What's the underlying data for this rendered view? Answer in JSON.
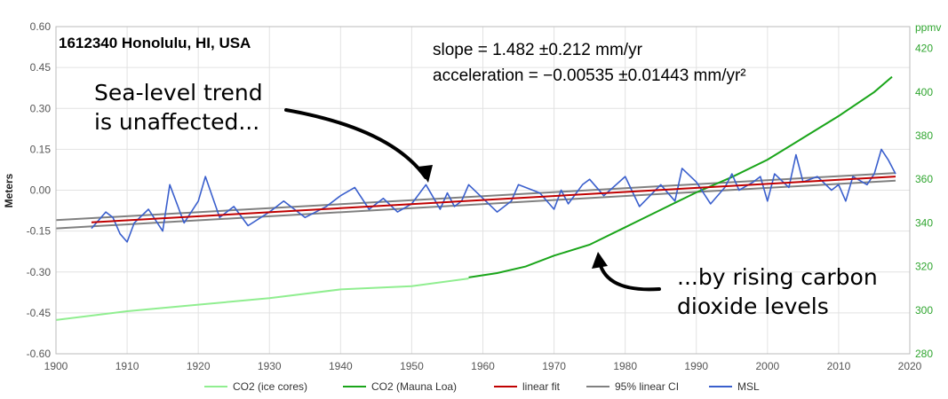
{
  "chart_data": {
    "type": "line",
    "title": "1612340 Honolulu, HI, USA",
    "stats": {
      "slope": "slope = 1.482 ±0.212 mm/yr",
      "acceleration": "acceleration = −0.00535 ±0.01443 mm/yr²"
    },
    "annotations": [
      {
        "lines": [
          "Sea-level trend",
          "is unaffected..."
        ]
      },
      {
        "lines": [
          "...by rising carbon",
          "dioxide levels"
        ]
      }
    ],
    "ylabel": "Meters",
    "y2label": "ppmv",
    "xlim": [
      1900,
      2020
    ],
    "ylim": [
      -0.6,
      0.6
    ],
    "y2lim": [
      280,
      430
    ],
    "x_ticks": [
      "1900",
      "1910",
      "1920",
      "1930",
      "1940",
      "1950",
      "1960",
      "1970",
      "1980",
      "1990",
      "2000",
      "2010",
      "2020"
    ],
    "y_ticks": [
      "0.60",
      "0.45",
      "0.30",
      "0.15",
      "0.00",
      "-0.15",
      "-0.30",
      "-0.45",
      "-0.60"
    ],
    "y2_ticks": [
      "420",
      "400",
      "380",
      "360",
      "340",
      "320",
      "300",
      "280"
    ],
    "grid": true,
    "legend_position": "bottom",
    "colors": {
      "co2_ice": "#90ee90",
      "co2_ml": "#1aa51a",
      "linear_fit": "#c00000",
      "ci": "#808080",
      "msl": "#3a5fcd"
    },
    "series": [
      {
        "name": "CO2 (ice cores)",
        "axis": "right",
        "x": [
          1900,
          1910,
          1920,
          1930,
          1940,
          1950,
          1958
        ],
        "values": [
          295.5,
          299.5,
          302.5,
          305.5,
          309.5,
          311.0,
          314.5
        ]
      },
      {
        "name": "CO2 (Mauna Loa)",
        "axis": "right",
        "x": [
          1958,
          1962,
          1966,
          1970,
          1975,
          1980,
          1985,
          1990,
          1995,
          2000,
          2005,
          2010,
          2015,
          2017.5
        ],
        "values": [
          315,
          317,
          320,
          325,
          330,
          338,
          346,
          354,
          361,
          369,
          379,
          389,
          400,
          407
        ]
      },
      {
        "name": "linear fit",
        "axis": "left",
        "x": [
          1905,
          2018
        ],
        "values": [
          -0.118,
          0.05
        ]
      },
      {
        "name": "95% linear CI",
        "axis": "left",
        "x": [
          1900,
          2018
        ],
        "upper": [
          -0.11,
          0.063
        ],
        "lower": [
          -0.14,
          0.035
        ]
      },
      {
        "name": "MSL",
        "axis": "left",
        "x": [
          1905,
          1907,
          1908,
          1909,
          1910,
          1911,
          1913,
          1915,
          1916,
          1918,
          1920,
          1921,
          1923,
          1925,
          1927,
          1930,
          1932,
          1935,
          1938,
          1940,
          1942,
          1944,
          1946,
          1948,
          1950,
          1952,
          1954,
          1955,
          1956,
          1957,
          1958,
          1960,
          1962,
          1964,
          1965,
          1968,
          1970,
          1971,
          1972,
          1974,
          1975,
          1977,
          1980,
          1982,
          1985,
          1987,
          1988,
          1990,
          1992,
          1994,
          1995,
          1996,
          1998,
          1999,
          2000,
          2001,
          2003,
          2004,
          2005,
          2007,
          2009,
          2010,
          2011,
          2012,
          2014,
          2015,
          2016,
          2017,
          2018
        ],
        "values": [
          -0.14,
          -0.08,
          -0.1,
          -0.16,
          -0.19,
          -0.12,
          -0.07,
          -0.15,
          0.02,
          -0.12,
          -0.04,
          0.05,
          -0.1,
          -0.06,
          -0.13,
          -0.08,
          -0.04,
          -0.1,
          -0.06,
          -0.02,
          0.01,
          -0.07,
          -0.03,
          -0.08,
          -0.05,
          0.02,
          -0.07,
          -0.01,
          -0.06,
          -0.04,
          0.02,
          -0.03,
          -0.08,
          -0.04,
          0.02,
          -0.01,
          -0.07,
          0.0,
          -0.05,
          0.02,
          0.04,
          -0.02,
          0.05,
          -0.06,
          0.02,
          -0.04,
          0.08,
          0.03,
          -0.05,
          0.01,
          0.06,
          0.0,
          0.03,
          0.05,
          -0.04,
          0.06,
          0.01,
          0.13,
          0.03,
          0.05,
          0.0,
          0.02,
          -0.04,
          0.05,
          0.02,
          0.06,
          0.15,
          0.11,
          0.06
        ]
      }
    ]
  }
}
